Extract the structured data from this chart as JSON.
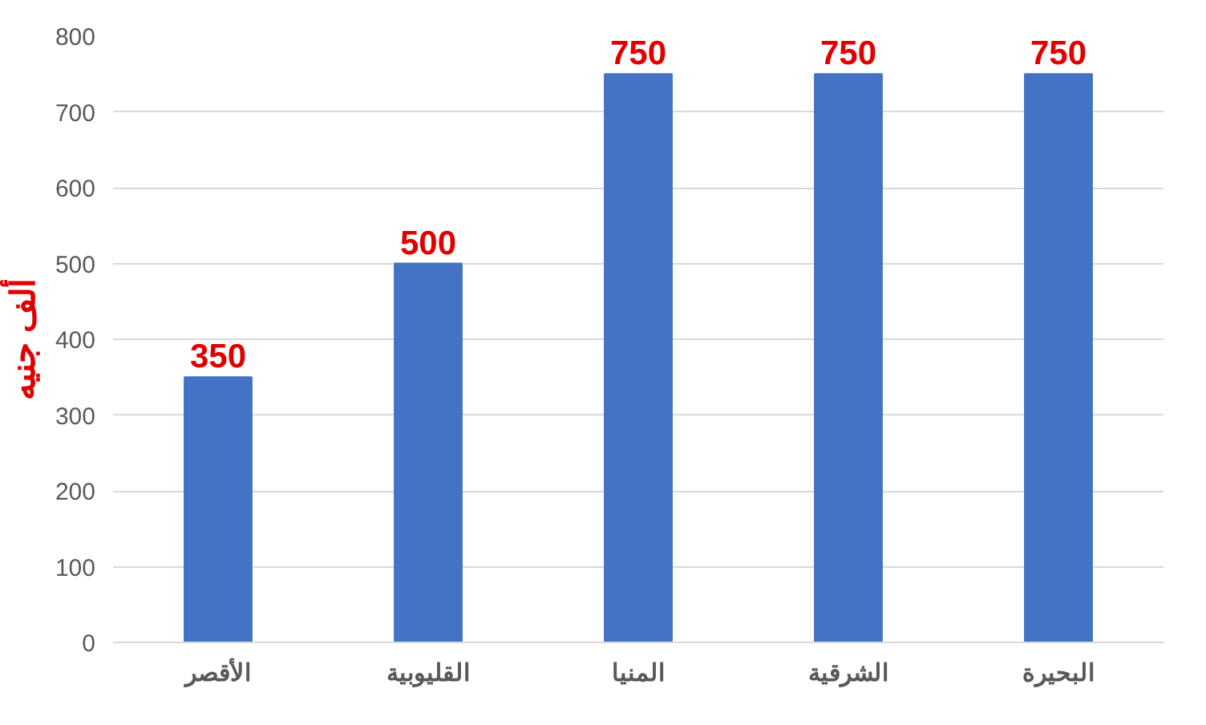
{
  "chart_data": {
    "type": "bar",
    "ylabel": "ألف جنيه",
    "categories": [
      "الأقصر",
      "القليوبية",
      "المنيا",
      "الشرقية",
      "البحيرة"
    ],
    "values": [
      350,
      500,
      750,
      750,
      750
    ],
    "color": "#4472c4",
    "ylim": [
      0,
      800
    ],
    "yticks": [
      0,
      100,
      200,
      300,
      400,
      500,
      600,
      700,
      800
    ],
    "grid": "y",
    "data_labels": true
  }
}
